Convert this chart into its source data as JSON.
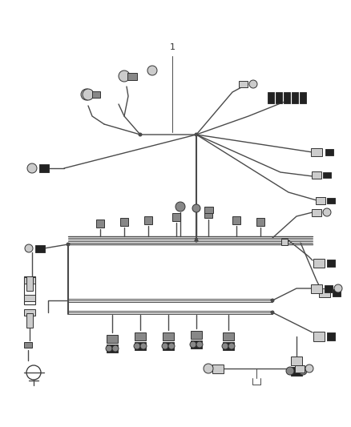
{
  "bg_color": "#ffffff",
  "wire_color": "#4a4a4a",
  "connector_edge": "#333333",
  "connector_light": "#cccccc",
  "connector_mid": "#888888",
  "connector_dark": "#222222",
  "label_color": "#333333",
  "fig_width": 4.38,
  "fig_height": 5.33,
  "dpi": 100
}
